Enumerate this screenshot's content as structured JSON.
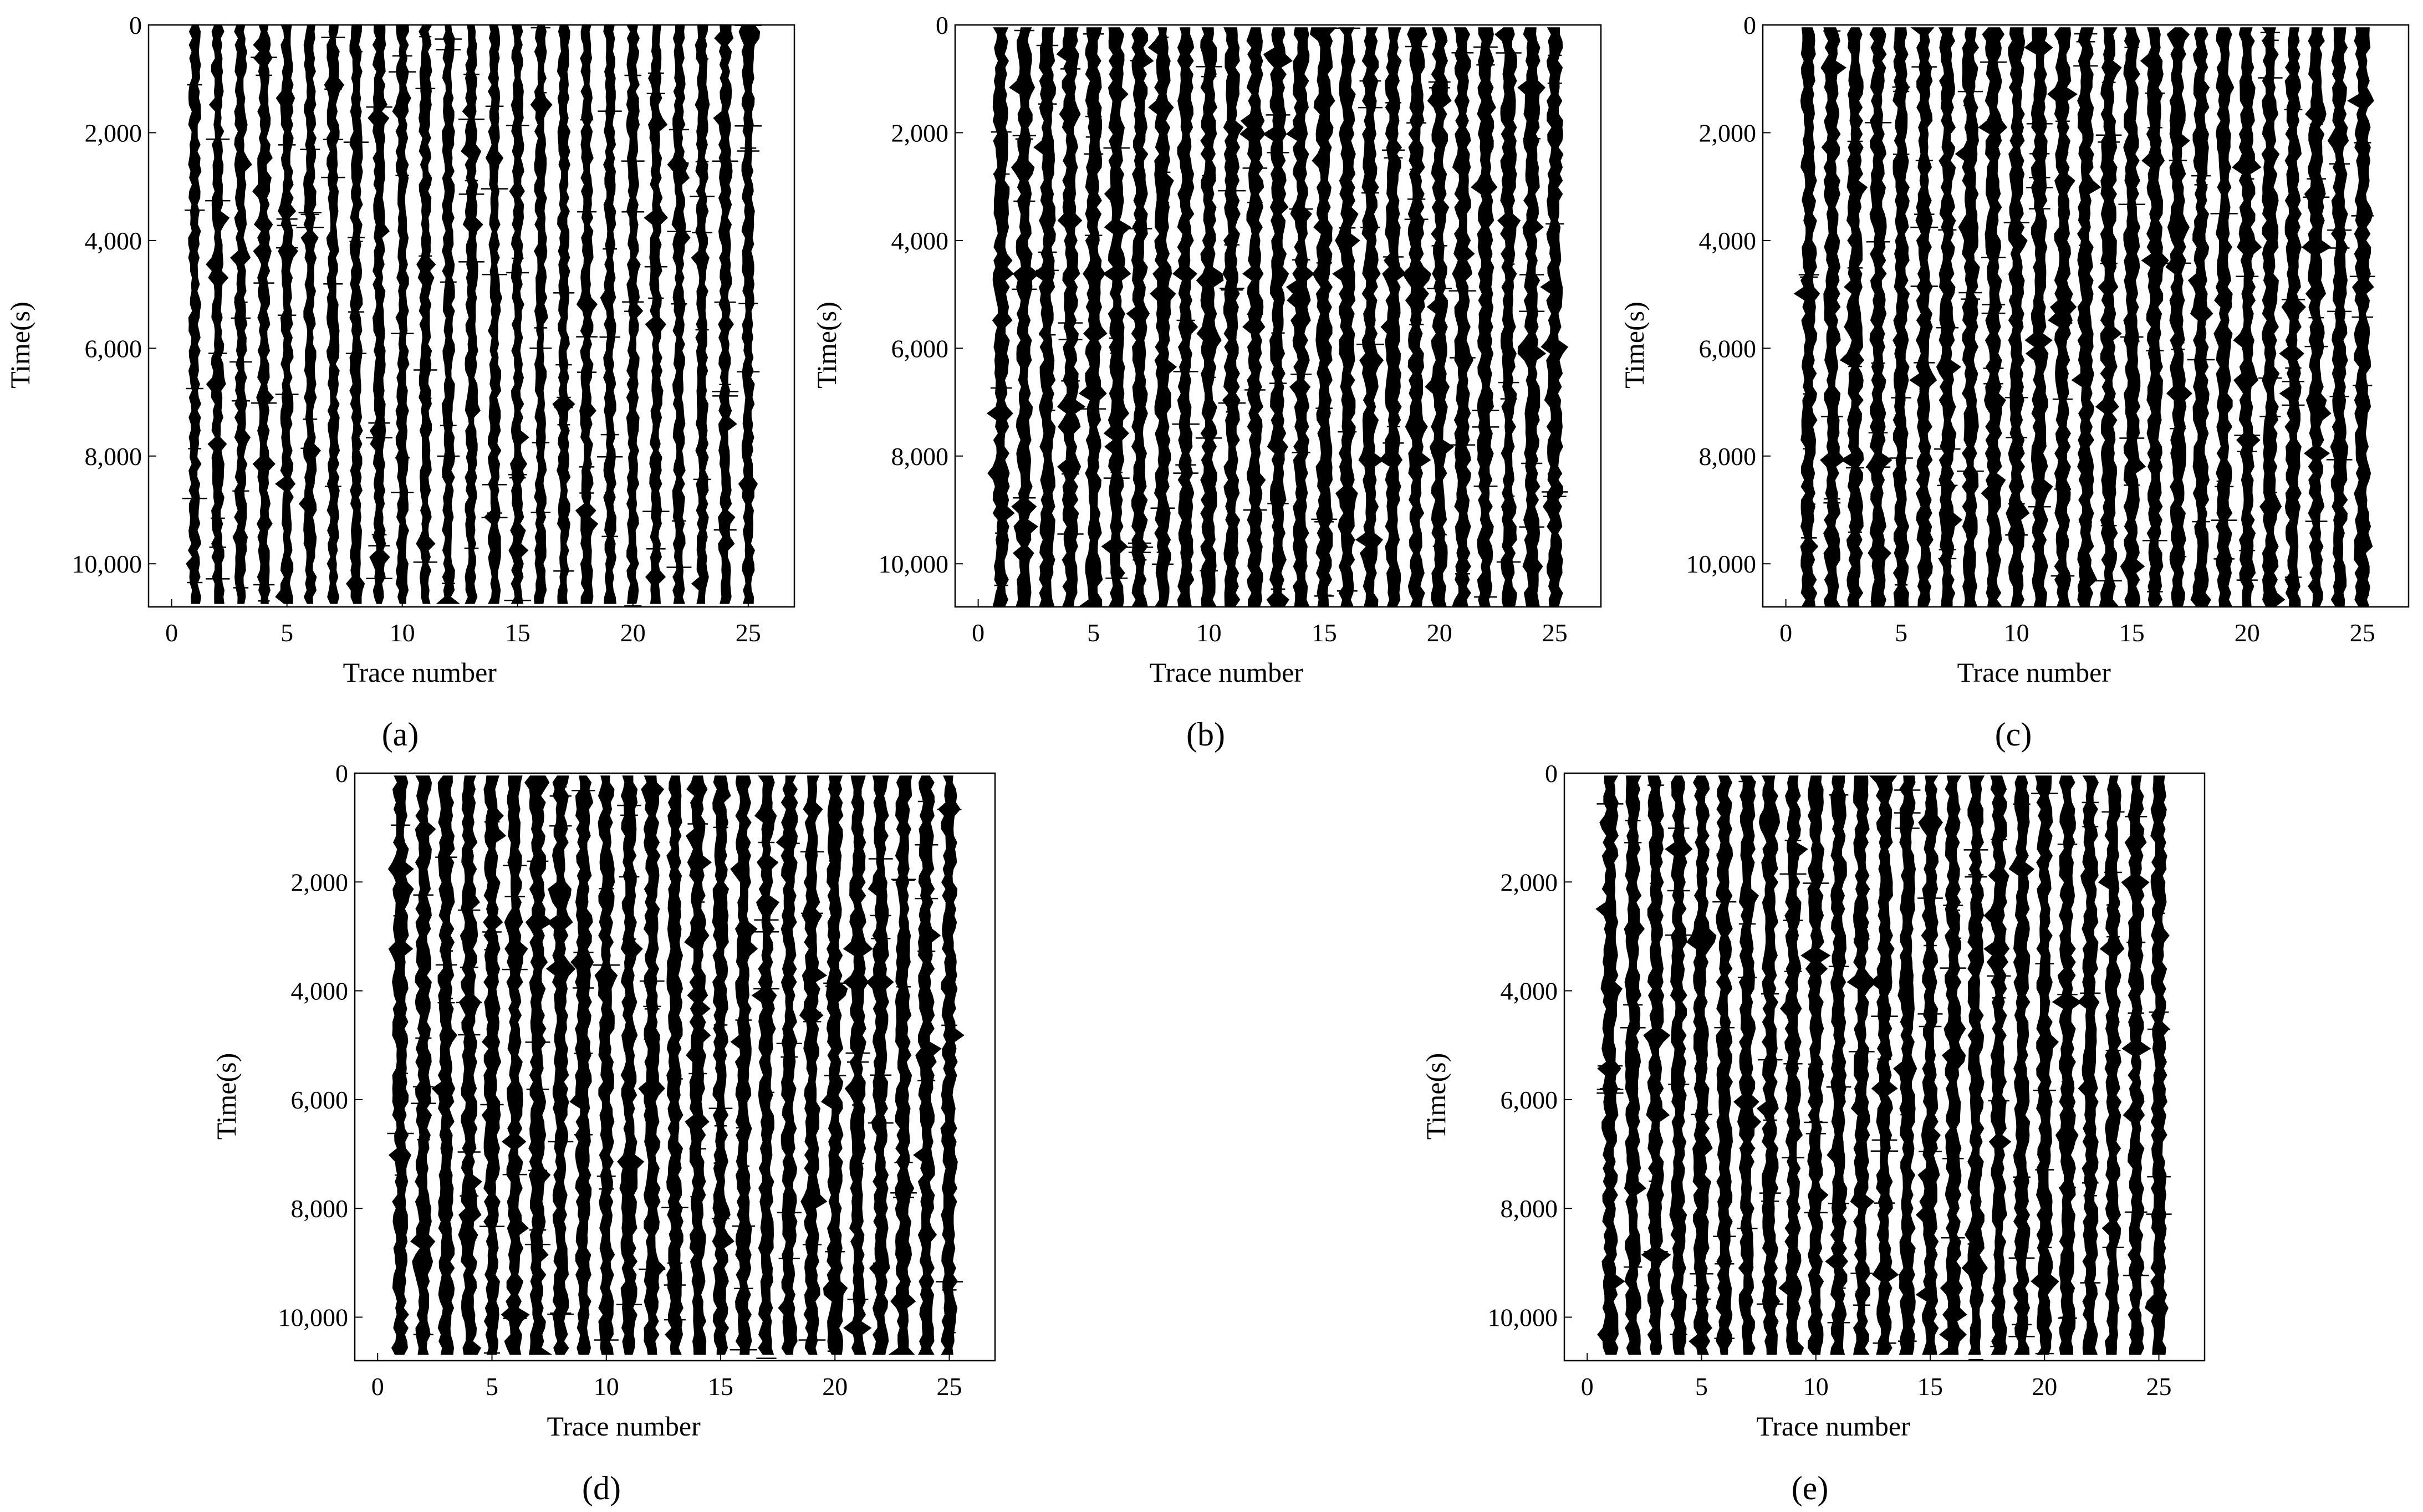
{
  "figure": {
    "panels_description_labels": [
      "a",
      "b",
      "c",
      "d",
      "e"
    ]
  },
  "chart_data": [
    {
      "panel": "a",
      "type": "seismic-wiggle",
      "xlabel": "Trace number",
      "ylabel": "Time(s)",
      "xlim": [
        -1,
        27
      ],
      "ylim": [
        0,
        10800
      ],
      "y_inverted": true,
      "x_ticks": [
        0,
        5,
        10,
        15,
        20,
        25
      ],
      "x_tick_labels": [
        "0",
        "5",
        "10",
        "15",
        "20",
        "25"
      ],
      "y_ticks": [
        0,
        2000,
        4000,
        6000,
        8000,
        10000
      ],
      "y_tick_labels": [
        "0",
        "2,000",
        "4,000",
        "6,000",
        "8,000",
        "10,000"
      ],
      "traces": 25,
      "trace_start_time": 0,
      "trace_end_time": 10800,
      "amplitude": 0.28,
      "grid": false,
      "legend": "none"
    },
    {
      "panel": "b",
      "type": "seismic-wiggle",
      "xlabel": "Trace number",
      "ylabel": "Time(s)",
      "xlim": [
        -1,
        27
      ],
      "ylim": [
        0,
        10800
      ],
      "y_inverted": true,
      "x_ticks": [
        0,
        5,
        10,
        15,
        20,
        25
      ],
      "x_tick_labels": [
        "0",
        "5",
        "10",
        "15",
        "20",
        "25"
      ],
      "y_ticks": [
        0,
        2000,
        4000,
        6000,
        8000,
        10000
      ],
      "y_tick_labels": [
        "0",
        "2,000",
        "4,000",
        "6,000",
        "8,000",
        "10,000"
      ],
      "traces": 25,
      "trace_start_time": 50,
      "trace_end_time": 10800,
      "amplitude": 0.36,
      "grid": false,
      "legend": "none"
    },
    {
      "panel": "c",
      "type": "seismic-wiggle",
      "xlabel": "Trace number",
      "ylabel": "Time(s)",
      "xlim": [
        -1,
        27
      ],
      "ylim": [
        0,
        10800
      ],
      "y_inverted": true,
      "x_ticks": [
        0,
        5,
        10,
        15,
        20,
        25
      ],
      "x_tick_labels": [
        "0",
        "5",
        "10",
        "15",
        "20",
        "25"
      ],
      "y_ticks": [
        0,
        2000,
        4000,
        6000,
        8000,
        10000
      ],
      "y_tick_labels": [
        "0",
        "2,000",
        "4,000",
        "6,000",
        "8,000",
        "10,000"
      ],
      "traces": 25,
      "trace_start_time": 50,
      "trace_end_time": 10800,
      "amplitude": 0.36,
      "grid": false,
      "legend": "none"
    },
    {
      "panel": "d",
      "type": "seismic-wiggle",
      "xlabel": "Trace number",
      "ylabel": "Time(s)",
      "xlim": [
        -1,
        27
      ],
      "ylim": [
        0,
        10800
      ],
      "y_inverted": true,
      "x_ticks": [
        0,
        5,
        10,
        15,
        20,
        25
      ],
      "x_tick_labels": [
        "0",
        "5",
        "10",
        "15",
        "20",
        "25"
      ],
      "y_ticks": [
        2000,
        4000,
        6000,
        8000,
        10000
      ],
      "y_tick_labels": [
        "2,000",
        "4,000",
        "6,000",
        "8,000",
        "10,000"
      ],
      "top_label": "0",
      "traces": 25,
      "trace_start_time": 50,
      "trace_end_time": 10800,
      "amplitude": 0.36,
      "grid": false,
      "legend": "none"
    },
    {
      "panel": "e",
      "type": "seismic-wiggle",
      "xlabel": "Trace number",
      "ylabel": "Time(s)",
      "xlim": [
        -1,
        27
      ],
      "ylim": [
        0,
        10800
      ],
      "y_inverted": true,
      "x_ticks": [
        0,
        5,
        10,
        15,
        20,
        25
      ],
      "x_tick_labels": [
        "0",
        "5",
        "10",
        "15",
        "20",
        "25"
      ],
      "y_ticks": [
        2000,
        4000,
        6000,
        8000,
        10000
      ],
      "y_tick_labels": [
        "2,000",
        "4,000",
        "6,000",
        "8,000",
        "10,000"
      ],
      "top_label": "0",
      "traces": 25,
      "trace_start_time": 50,
      "trace_end_time": 10800,
      "amplitude": 0.36,
      "grid": false,
      "legend": "none"
    }
  ],
  "panel_labels": [
    "(a)",
    "(b)",
    "(c)",
    "(d)",
    "(e)"
  ],
  "colors": {
    "trace": "#000000",
    "axis": "#000000",
    "background": "#ffffff"
  }
}
